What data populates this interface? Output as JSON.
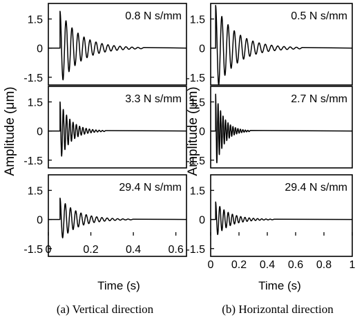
{
  "chart_data": [
    {
      "type": "line",
      "caption": "(a) Vertical direction",
      "xlabel": "Time (s)",
      "ylabel": "Amplitude (μm)",
      "xlim": [
        0,
        0.65
      ],
      "xticks": [
        "0",
        "0.2",
        "0.4",
        "0.6"
      ],
      "ylim": [
        -1.9,
        2.3
      ],
      "yticks": [
        "1.5",
        "0",
        "-1.5"
      ],
      "panels": [
        {
          "label": "0.8 N s/mm",
          "series": [
            {
              "x": [
                0,
                0.05,
                0.06,
                0.07,
                0.08,
                0.1,
                0.2,
                0.3,
                0.4,
                0.45,
                0.65
              ],
              "y": [
                0,
                0,
                1.9,
                -0.6,
                1.2,
                -1.2,
                0.5,
                0.25,
                0.1,
                0,
                0
              ]
            }
          ]
        },
        {
          "label": "3.3 N s/mm",
          "series": [
            {
              "x": [
                0,
                0.05,
                0.06,
                0.08,
                0.1,
                0.15,
                0.2,
                0.27,
                0.65
              ],
              "y": [
                0,
                0,
                1.5,
                -0.9,
                0.9,
                0.45,
                0.2,
                0,
                0
              ]
            }
          ]
        },
        {
          "label": "29.4 N s/mm",
          "series": [
            {
              "x": [
                0,
                0.05,
                0.06,
                0.08,
                0.1,
                0.2,
                0.3,
                0.4,
                0.65
              ],
              "y": [
                0,
                0,
                1.1,
                -0.6,
                0.7,
                0.4,
                0.25,
                0.05,
                0
              ]
            }
          ]
        }
      ]
    },
    {
      "type": "line",
      "caption": "(b) Horizontal direction",
      "xlabel": "Time (s)",
      "ylabel": "Amplitude (μm)",
      "xlim": [
        0,
        1
      ],
      "xticks": [
        "0",
        "0.2",
        "0.4",
        "0.6",
        "0.8",
        "1"
      ],
      "ylim": [
        -1.9,
        2.3
      ],
      "yticks": [
        "1.5",
        "0",
        "-1.5"
      ],
      "panels": [
        {
          "label": "0.5 N s/mm",
          "series": [
            {
              "x": [
                0,
                0.03,
                0.04,
                0.08,
                0.1,
                0.2,
                0.4,
                0.6,
                0.65,
                1
              ],
              "y": [
                0,
                0,
                2.2,
                -1.7,
                1.5,
                0.8,
                0.35,
                0.1,
                0,
                0
              ]
            }
          ]
        },
        {
          "label": "2.7 N s/mm",
          "series": [
            {
              "x": [
                0,
                0.03,
                0.04,
                0.08,
                0.1,
                0.2,
                0.28,
                1
              ],
              "y": [
                0,
                0,
                1.9,
                -1.5,
                1.0,
                0.3,
                0,
                0
              ]
            }
          ]
        },
        {
          "label": "29.4 N s/mm",
          "series": [
            {
              "x": [
                0,
                0.03,
                0.04,
                0.08,
                0.1,
                0.2,
                0.3,
                0.45,
                1
              ],
              "y": [
                0,
                0,
                0.9,
                -0.6,
                0.6,
                0.3,
                0.15,
                0,
                0
              ]
            }
          ]
        }
      ]
    }
  ]
}
